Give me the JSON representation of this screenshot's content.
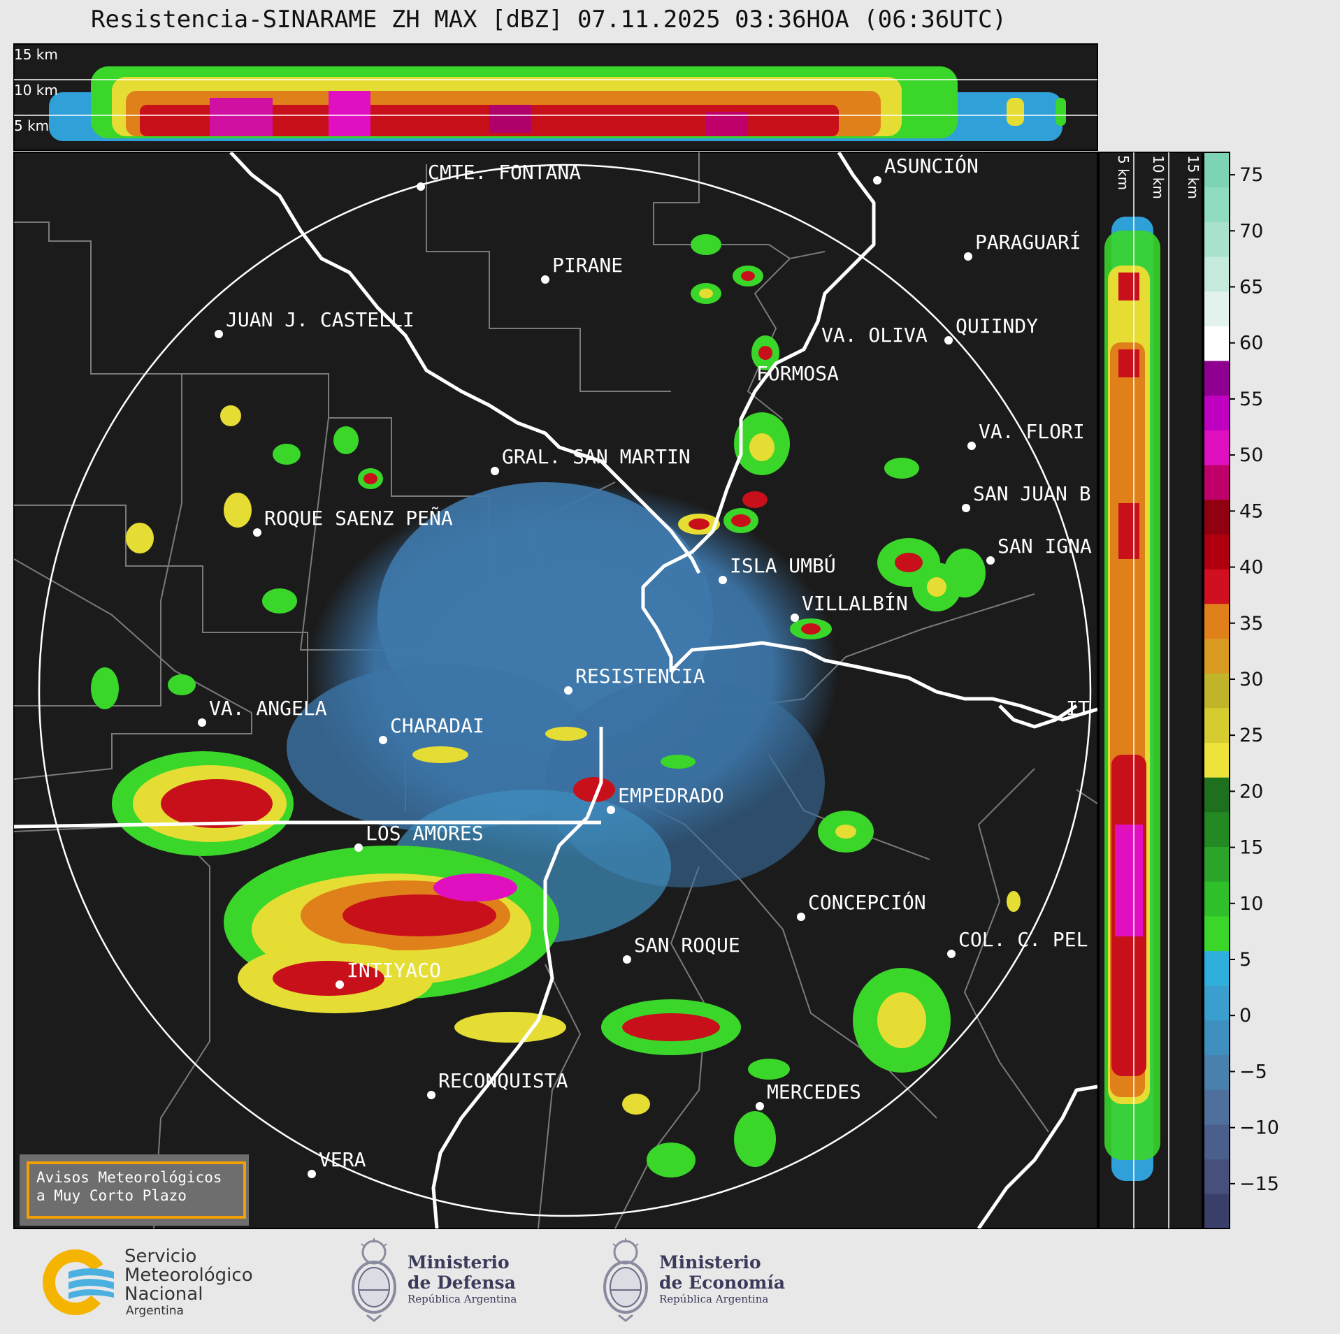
{
  "title": "Resistencia-SINARAME ZH MAX [dBZ] 07.11.2025 03:36HOA (06:36UTC)",
  "top_panel_labels": [
    "15 km",
    "10 km",
    "5 km"
  ],
  "side_panel_labels": [
    "5 km",
    "10 km",
    "15 km"
  ],
  "colorbar_ticks": [
    "75",
    "70",
    "65",
    "60",
    "55",
    "50",
    "45",
    "40",
    "35",
    "30",
    "25",
    "20",
    "15",
    "10",
    "5",
    "0",
    "−5",
    "−10",
    "−15"
  ],
  "colorbar_colors": [
    "#3a3f6a",
    "#46507a",
    "#4a5f8c",
    "#4f709c",
    "#4a80ac",
    "#3f8fbf",
    "#3a9fcf",
    "#2fb0dc",
    "#3ad62a",
    "#2fbf2a",
    "#2aa52a",
    "#238a23",
    "#1e701e",
    "#eee33a",
    "#d6cc30",
    "#c0b52a",
    "#d89a20",
    "#e0801a",
    "#d01020",
    "#b00010",
    "#900010",
    "#c0006a",
    "#e010c0",
    "#c000c0",
    "#900090",
    "#ffffff",
    "#e2f2ec",
    "#c4eadc",
    "#a8e2cc",
    "#90dcc0",
    "#7cd4b4"
  ],
  "cities": [
    {
      "name": "CMTE. FONTANA"
    },
    {
      "name": "ASUNCIÓN"
    },
    {
      "name": "PARAGUARÍ"
    },
    {
      "name": "PIRANE"
    },
    {
      "name": "JUAN J. CASTELLI"
    },
    {
      "name": "VA. OLIVA"
    },
    {
      "name": "QUIINDY"
    },
    {
      "name": "FORMOSA"
    },
    {
      "name": "VA. FLORI"
    },
    {
      "name": "GRAL. SAN MARTIN"
    },
    {
      "name": "SAN JUAN B"
    },
    {
      "name": "ROQUE SAENZ PEÑA"
    },
    {
      "name": "SAN IGNA"
    },
    {
      "name": "ISLA UMBÚ"
    },
    {
      "name": "VILLALBÍN"
    },
    {
      "name": "RESISTENCIA"
    },
    {
      "name": "VA. ANGELA"
    },
    {
      "name": "CHARADAI"
    },
    {
      "name": "IT"
    },
    {
      "name": "EMPEDRADO"
    },
    {
      "name": "LOS AMORES"
    },
    {
      "name": "CONCEPCIÓN"
    },
    {
      "name": "COL. C. PEL"
    },
    {
      "name": "SAN ROQUE"
    },
    {
      "name": "INTIYACO"
    },
    {
      "name": "RECONQUISTA"
    },
    {
      "name": "MERCEDES"
    },
    {
      "name": "VERA"
    }
  ],
  "warning_box": {
    "line1": "Avisos Meteorológicos",
    "line2": "a Muy Corto Plazo"
  },
  "logos": {
    "smn": {
      "line1": "Servicio",
      "line2": "Meteorológico",
      "line3": "Nacional",
      "line4": "Argentina"
    },
    "defensa": {
      "line1": "Ministerio",
      "line2": "de Defensa",
      "line3": "República Argentina"
    },
    "economia": {
      "line1": "Ministerio",
      "line2": "de Economía",
      "line3": "República Argentina"
    }
  }
}
